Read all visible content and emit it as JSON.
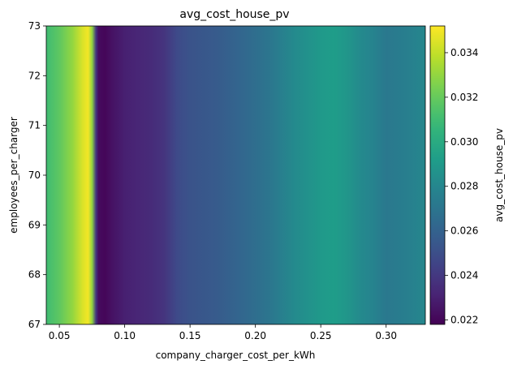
{
  "chart_data": {
    "type": "heatmap",
    "title": "avg_cost_house_pv",
    "xlabel": "company_charger_cost_per_kWh",
    "ylabel": "employees_per_charger",
    "xlim": [
      0.04,
      0.33
    ],
    "ylim": [
      67,
      73
    ],
    "x_ticks": [
      0.05,
      0.1,
      0.15,
      0.2,
      0.25,
      0.3
    ],
    "x_tick_labels": [
      "0.05",
      "0.10",
      "0.15",
      "0.20",
      "0.25",
      "0.30"
    ],
    "y_ticks": [
      67,
      68,
      69,
      70,
      71,
      72,
      73
    ],
    "y_tick_labels": [
      "67",
      "68",
      "69",
      "70",
      "71",
      "72",
      "73"
    ],
    "colorbar": {
      "label": "avg_cost_house_pv",
      "colormap": "viridis",
      "range": [
        0.0218,
        0.0352
      ],
      "ticks": [
        0.022,
        0.024,
        0.026,
        0.028,
        0.03,
        0.032,
        0.034
      ],
      "tick_labels": [
        "0.022",
        "0.024",
        "0.026",
        "0.028",
        "0.030",
        "0.032",
        "0.034"
      ]
    },
    "x": [
      0.04,
      0.05,
      0.06,
      0.068,
      0.072,
      0.075,
      0.078,
      0.08,
      0.085,
      0.09,
      0.1,
      0.11,
      0.12,
      0.13,
      0.14,
      0.15,
      0.17,
      0.19,
      0.21,
      0.23,
      0.25,
      0.26,
      0.27,
      0.28,
      0.29,
      0.3,
      0.315,
      0.33
    ],
    "values": [
      0.031,
      0.0318,
      0.033,
      0.0345,
      0.035,
      0.033,
      0.024,
      0.0222,
      0.022,
      0.0224,
      0.023,
      0.0232,
      0.0234,
      0.0238,
      0.0248,
      0.0252,
      0.0256,
      0.0262,
      0.027,
      0.0282,
      0.029,
      0.0292,
      0.0288,
      0.0282,
      0.0278,
      0.0272,
      0.0275,
      0.028
    ],
    "note_values": "value varies only with x; constant across the y range"
  }
}
